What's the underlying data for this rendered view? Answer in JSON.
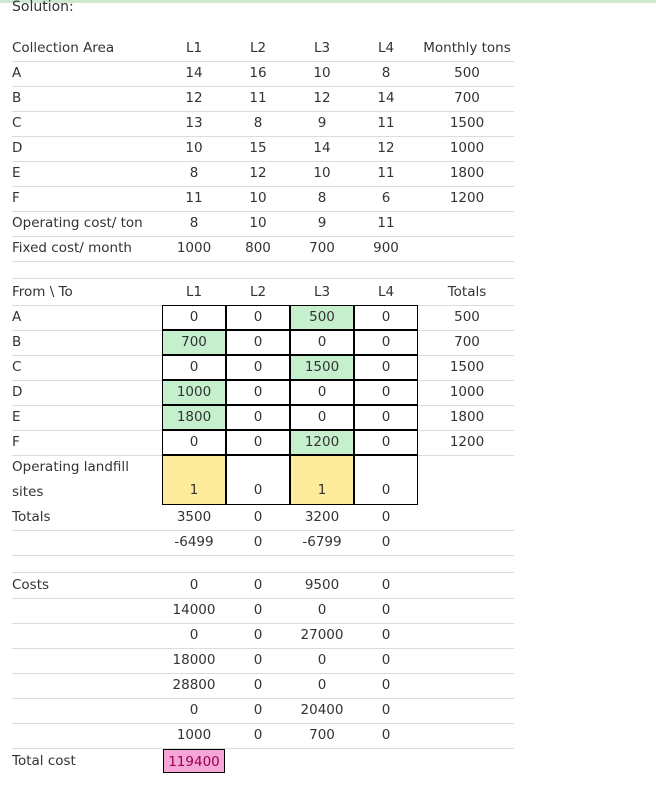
{
  "solution_label": "Solution:",
  "params": {
    "header": [
      "Collection Area",
      "L1",
      "L2",
      "L3",
      "L4",
      "Monthly tons"
    ],
    "rows": [
      [
        "A",
        "14",
        "16",
        "10",
        "8",
        "500"
      ],
      [
        "B",
        "12",
        "11",
        "12",
        "14",
        "700"
      ],
      [
        "C",
        "13",
        "8",
        "9",
        "11",
        "1500"
      ],
      [
        "D",
        "10",
        "15",
        "14",
        "12",
        "1000"
      ],
      [
        "E",
        "8",
        "12",
        "10",
        "11",
        "1800"
      ],
      [
        "F",
        "11",
        "10",
        "8",
        "6",
        "1200"
      ],
      [
        "Operating cost/ ton",
        "8",
        "10",
        "9",
        "11",
        ""
      ],
      [
        "Fixed cost/ month",
        "1000",
        "800",
        "700",
        "900",
        ""
      ]
    ]
  },
  "allocation": {
    "header": [
      "From \\ To",
      "L1",
      "L2",
      "L3",
      "L4",
      "Totals"
    ],
    "rows": [
      [
        "A",
        "0",
        "0",
        "500",
        "0",
        "500"
      ],
      [
        "B",
        "700",
        "0",
        "0",
        "0",
        "700"
      ],
      [
        "C",
        "0",
        "0",
        "1500",
        "0",
        "1500"
      ],
      [
        "D",
        "1000",
        "0",
        "0",
        "0",
        "1000"
      ],
      [
        "E",
        "1800",
        "0",
        "0",
        "0",
        "1800"
      ],
      [
        "F",
        "0",
        "0",
        "1200",
        "0",
        "1200"
      ]
    ],
    "sites_label_1": "Operating landfill",
    "sites_label_2": "sites",
    "sites": [
      "1",
      "0",
      "1",
      "0"
    ],
    "totals_label": "Totals",
    "totals": [
      "3500",
      "0",
      "3200",
      "0"
    ],
    "slack": [
      "-6499",
      "0",
      "-6799",
      "0"
    ]
  },
  "costs": {
    "label": "Costs",
    "rows": [
      [
        "0",
        "0",
        "9500",
        "0"
      ],
      [
        "14000",
        "0",
        "0",
        "0"
      ],
      [
        "0",
        "0",
        "27000",
        "0"
      ],
      [
        "18000",
        "0",
        "0",
        "0"
      ],
      [
        "28800",
        "0",
        "0",
        "0"
      ],
      [
        "0",
        "0",
        "20400",
        "0"
      ],
      [
        "1000",
        "0",
        "700",
        "0"
      ]
    ],
    "total_label": "Total cost",
    "total_value": "119400"
  }
}
